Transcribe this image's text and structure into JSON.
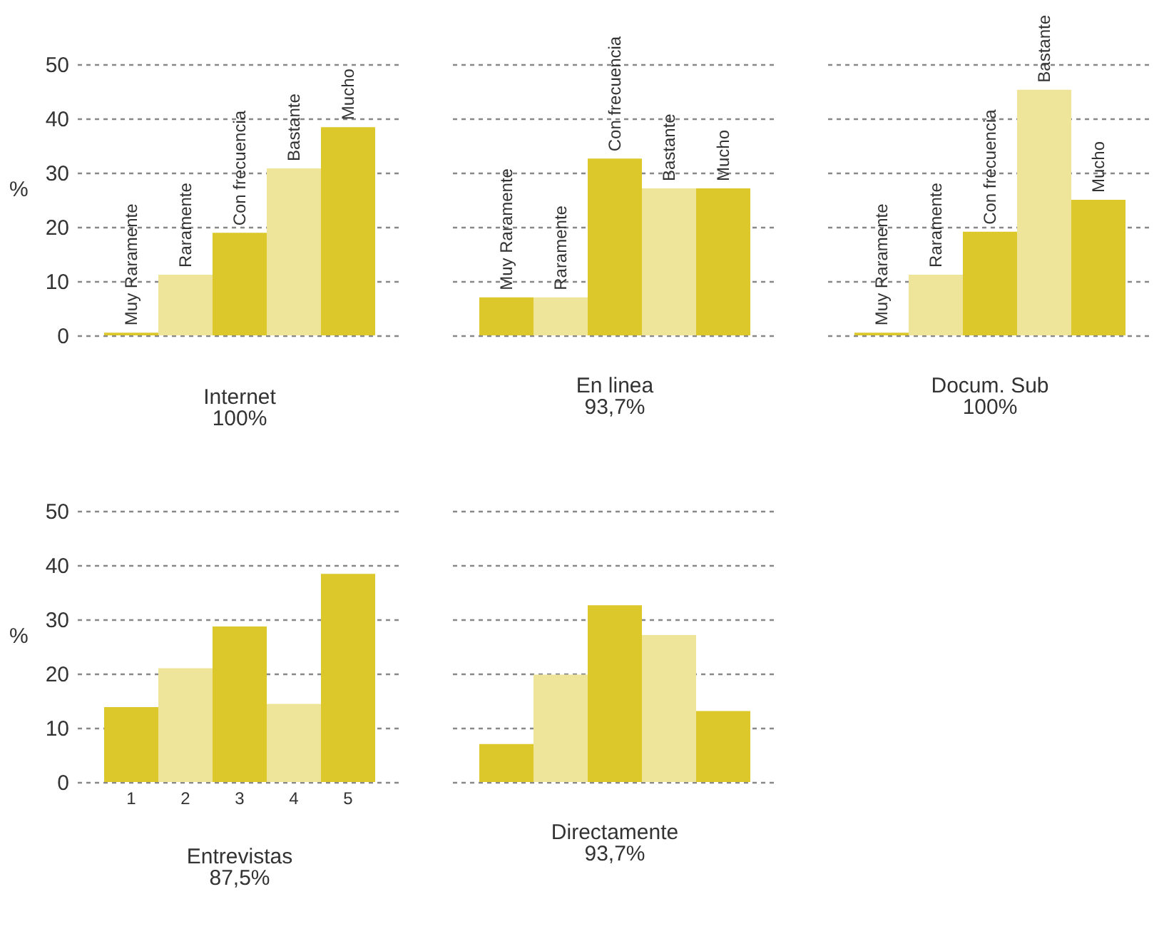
{
  "chart_data": [
    {
      "type": "bar",
      "title": "Internet",
      "subtitle": "100%",
      "ylabel": "%",
      "categories": [
        "Muy Raramente",
        "Raramente",
        "Con frecuencia",
        "Bastante",
        "Mucho"
      ],
      "values": [
        0.5,
        11.2,
        18.9,
        30.8,
        38.4
      ],
      "colors": [
        "#ddc82c",
        "#efe59a",
        "#ddc82c",
        "#efe59a",
        "#ddc82c"
      ],
      "ylim": [
        0,
        50
      ],
      "yticks": [
        0,
        10,
        20,
        30,
        40,
        50
      ],
      "grid": "y"
    },
    {
      "type": "bar",
      "title": "En linea",
      "subtitle": "93,7%",
      "categories": [
        "Muy Raramente",
        "Raramente",
        "Con frecuencia",
        "Bastante",
        "Mucho"
      ],
      "values": [
        7.0,
        7.0,
        32.6,
        27.1,
        27.1
      ],
      "colors": [
        "#ddc82c",
        "#efe59a",
        "#ddc82c",
        "#efe59a",
        "#ddc82c"
      ],
      "ylim": [
        0,
        50
      ],
      "yticks": [
        0,
        10,
        20,
        30,
        40,
        50
      ],
      "grid": "y",
      "tick_labels": "x"
    },
    {
      "type": "bar",
      "title": "Docum. Sub",
      "subtitle": "100%",
      "categories": [
        "Muy Raramente",
        "Raramente",
        "Con frecuencia",
        "Bastante",
        "Mucho"
      ],
      "values": [
        0.5,
        11.2,
        19.1,
        45.3,
        25.0
      ],
      "colors": [
        "#ddc82c",
        "#efe59a",
        "#ddc82c",
        "#efe59a",
        "#ddc82c"
      ],
      "ylim": [
        0,
        50
      ],
      "yticks": [
        0,
        10,
        20,
        30,
        40,
        50
      ],
      "grid": "y",
      "tick_labels": "x"
    },
    {
      "type": "bar",
      "title": "Entrevistas",
      "subtitle": "87,5%",
      "ylabel": "%",
      "categories": [
        "1",
        "2",
        "3",
        "4",
        "5"
      ],
      "values": [
        13.8,
        21.0,
        28.7,
        14.4,
        38.4
      ],
      "colors": [
        "#ddc82c",
        "#efe59a",
        "#ddc82c",
        "#efe59a",
        "#ddc82c"
      ],
      "ylim": [
        0,
        50
      ],
      "yticks": [
        0,
        10,
        20,
        30,
        40,
        50
      ],
      "grid": "y"
    },
    {
      "type": "bar",
      "title": "Directamente",
      "subtitle": "93,7%",
      "categories": [
        null,
        null,
        null,
        null,
        null
      ],
      "values": [
        7.0,
        19.8,
        32.6,
        27.1,
        13.1
      ],
      "colors": [
        "#ddc82c",
        "#efe59a",
        "#ddc82c",
        "#efe59a",
        "#ddc82c"
      ],
      "ylim": [
        0,
        50
      ],
      "yticks": [
        0,
        10,
        20,
        30,
        40,
        50
      ],
      "grid": "y",
      "tick_labels": false
    }
  ]
}
